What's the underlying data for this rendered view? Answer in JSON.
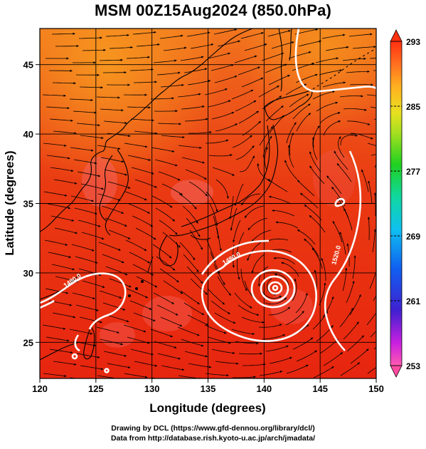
{
  "title": "MSM 00Z15Aug2024 (850.0hPa)",
  "axes": {
    "xlabel": "Longitude (degrees)",
    "ylabel": "Latitude  (degrees)",
    "xticks": [
      120,
      125,
      130,
      135,
      140,
      145,
      150
    ],
    "yticks": [
      25,
      30,
      35,
      40,
      45
    ],
    "xlim": [
      120,
      150
    ],
    "ylim": [
      22.4,
      47.6
    ]
  },
  "colorbar": {
    "min": 253,
    "max": 293,
    "tick_labels": [
      "293",
      "285",
      "277",
      "269",
      "261",
      "253"
    ],
    "colors": [
      "#ff4aa0",
      "#c81ee0",
      "#5020d0",
      "#1060f0",
      "#10b8f0",
      "#10d8a0",
      "#20d020",
      "#a0e020",
      "#e8e020",
      "#ffb020",
      "#ff7020",
      "#ff3010"
    ]
  },
  "contours": {
    "labels": [
      "1480.0",
      "1480.0",
      "1520.0"
    ]
  },
  "credits": {
    "line1": "Drawing by DCL (https://www.gfd-dennou.org/library/dcl/)",
    "line2": "Data from http://database.rish.kyoto-u.ac.jp/arch/jmadata/"
  }
}
